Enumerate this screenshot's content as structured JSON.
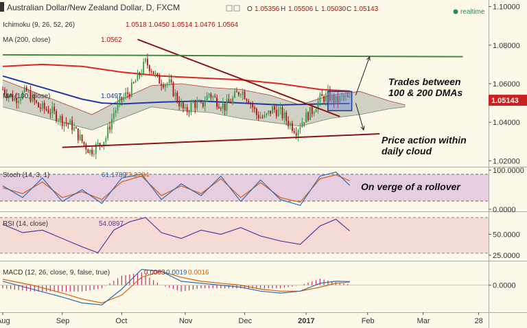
{
  "header": {
    "title": "Australian Dollar/New Zealand Dollar, D, FXCM",
    "o_label": "O",
    "o": "1.05356",
    "h_label": "H",
    "h": "1.05506",
    "l_label": "L",
    "l": "1.05030",
    "c_label": "C",
    "c": "1.05143",
    "realtime": "realtime"
  },
  "legend": {
    "ichimoku": {
      "label": "Ichimoku (9, 26, 52, 26)",
      "values": "1.0518  1.0450  1.0514  1.0476  1.0564"
    },
    "ma200": {
      "label": "MA (200, close)",
      "value": "1.0562"
    },
    "ma100": {
      "label": "MA (100, close)",
      "value": "1.0497"
    },
    "stoch": {
      "label": "Stoch (14, 3, 1)",
      "k": "61.1789",
      "d": "73.2284"
    },
    "rsi": {
      "label": "RSI (14, close)",
      "value": "54.0897"
    },
    "macd": {
      "label": "MACD (12, 26, close, 9, false, true)",
      "hist": "0.0003",
      "macd": "0.0019",
      "signal": "0.0016"
    }
  },
  "annotations": {
    "dma_line1": "Trades between",
    "dma_line2": "100 & 200 DMAs",
    "cloud_line1": "Price action within",
    "cloud_line2": "daily cloud",
    "rollover": "On verge of a rollover"
  },
  "price_axis": {
    "ticks": [
      "1.10000",
      "1.08000",
      "1.06000",
      "1.04000",
      "1.02000"
    ],
    "tick_values": [
      1.1,
      1.08,
      1.06,
      1.04,
      1.02
    ],
    "last": "1.05143",
    "last_value": 1.05143
  },
  "indicator_axes": {
    "stoch": {
      "ticks": [
        "100.0000",
        "0.0000"
      ],
      "tick_values": [
        100,
        0
      ]
    },
    "rsi": {
      "ticks": [
        "50.0000",
        "25.0000"
      ],
      "tick_values": [
        50,
        25
      ]
    },
    "macd": {
      "ticks": [
        "0.0000"
      ],
      "tick_values": [
        0
      ]
    }
  },
  "time_axis": {
    "labels": [
      "Aug",
      "Sep",
      "Oct",
      "Nov",
      "Dec",
      "2017",
      "Feb",
      "Mar",
      "28"
    ],
    "day_index": [
      0,
      30,
      60,
      92,
      122,
      153,
      184,
      212,
      240
    ]
  },
  "colors": {
    "bull": "#2e9e44",
    "bear": "#b01010",
    "ma200": "#e02424",
    "ma100": "#1f3aa8",
    "chikou": "#2e8b57",
    "cloud": "#9aa09a",
    "trend": "#8b1414",
    "stoch_k": "#2b6cb0",
    "stoch_d": "#d4600c",
    "rsi": "#6b2fa0",
    "macd": "#2b6cb0",
    "signal": "#d4600c",
    "hist": "#c0306e"
  },
  "chart_data": {
    "type": "candlestick",
    "symbol": "AUDNZD",
    "timeframe": "D",
    "ylim": [
      1.018,
      1.102
    ],
    "x_dates": [
      "Aug",
      "Sep",
      "Oct",
      "Nov",
      "Dec",
      "2017",
      "Feb",
      "Mar",
      "28"
    ],
    "close_path": [
      [
        0,
        1.057
      ],
      [
        6,
        1.052
      ],
      [
        12,
        1.056
      ],
      [
        18,
        1.048
      ],
      [
        24,
        1.046
      ],
      [
        30,
        1.041
      ],
      [
        35,
        1.038
      ],
      [
        40,
        1.03
      ],
      [
        44,
        1.025
      ],
      [
        48,
        1.028
      ],
      [
        52,
        1.032
      ],
      [
        56,
        1.045
      ],
      [
        60,
        1.052
      ],
      [
        64,
        1.056
      ],
      [
        68,
        1.063
      ],
      [
        72,
        1.071
      ],
      [
        75,
        1.068
      ],
      [
        78,
        1.062
      ],
      [
        84,
        1.06
      ],
      [
        88,
        1.052
      ],
      [
        92,
        1.045
      ],
      [
        96,
        1.05
      ],
      [
        100,
        1.048
      ],
      [
        104,
        1.055
      ],
      [
        108,
        1.051
      ],
      [
        112,
        1.048
      ],
      [
        116,
        1.052
      ],
      [
        120,
        1.057
      ],
      [
        124,
        1.052
      ],
      [
        128,
        1.044
      ],
      [
        132,
        1.042
      ],
      [
        136,
        1.047
      ],
      [
        140,
        1.045
      ],
      [
        144,
        1.04
      ],
      [
        148,
        1.036
      ],
      [
        152,
        1.042
      ],
      [
        156,
        1.046
      ],
      [
        160,
        1.052
      ],
      [
        164,
        1.054
      ],
      [
        168,
        1.051
      ],
      [
        172,
        1.053
      ],
      [
        175,
        1.0514
      ]
    ],
    "ma200_path": [
      [
        0,
        1.069
      ],
      [
        20,
        1.07
      ],
      [
        40,
        1.069
      ],
      [
        60,
        1.066
      ],
      [
        80,
        1.064
      ],
      [
        100,
        1.063
      ],
      [
        120,
        1.062
      ],
      [
        140,
        1.06
      ],
      [
        160,
        1.057
      ],
      [
        175,
        1.0562
      ]
    ],
    "ma100_path": [
      [
        0,
        1.064
      ],
      [
        10,
        1.061
      ],
      [
        20,
        1.058
      ],
      [
        30,
        1.055
      ],
      [
        40,
        1.052
      ],
      [
        50,
        1.05
      ],
      [
        60,
        1.0495
      ],
      [
        80,
        1.0505
      ],
      [
        100,
        1.051
      ],
      [
        120,
        1.05
      ],
      [
        140,
        1.049
      ],
      [
        160,
        1.0495
      ],
      [
        175,
        1.0497
      ]
    ],
    "cloud_upper": [
      [
        0,
        1.062
      ],
      [
        15,
        1.056
      ],
      [
        30,
        1.05
      ],
      [
        45,
        1.044
      ],
      [
        60,
        1.052
      ],
      [
        75,
        1.059
      ],
      [
        90,
        1.06
      ],
      [
        105,
        1.058
      ],
      [
        120,
        1.057
      ],
      [
        135,
        1.054
      ],
      [
        150,
        1.049
      ],
      [
        165,
        1.054
      ],
      [
        180,
        1.056
      ],
      [
        195,
        1.051
      ],
      [
        203,
        1.049
      ]
    ],
    "cloud_lower": [
      [
        0,
        1.048
      ],
      [
        15,
        1.044
      ],
      [
        30,
        1.04
      ],
      [
        45,
        1.036
      ],
      [
        60,
        1.042
      ],
      [
        75,
        1.048
      ],
      [
        90,
        1.046
      ],
      [
        105,
        1.045
      ],
      [
        120,
        1.042
      ],
      [
        135,
        1.04
      ],
      [
        150,
        1.038
      ],
      [
        165,
        1.042
      ],
      [
        180,
        1.044
      ],
      [
        195,
        1.047
      ],
      [
        203,
        1.048
      ]
    ],
    "trendlines": [
      {
        "name": "support",
        "from": [
          30,
          1.027
        ],
        "to": [
          190,
          1.034
        ]
      },
      {
        "name": "resistance",
        "from": [
          68,
          1.083
        ],
        "to": [
          170,
          1.043
        ]
      },
      {
        "name": "horizontal",
        "from": [
          0,
          1.075
        ],
        "to": [
          232,
          1.074
        ]
      }
    ],
    "arrows": [
      {
        "from": [
          178,
          1.054
        ],
        "to": [
          185,
          1.074
        ]
      },
      {
        "from": [
          178,
          1.05
        ],
        "to": [
          182,
          1.036
        ]
      }
    ],
    "consolidation_box": {
      "x_from": [
        164,
        176
      ],
      "y_from": [
        1.046,
        1.056
      ]
    },
    "stoch_k": [
      [
        0,
        60
      ],
      [
        10,
        30
      ],
      [
        20,
        80
      ],
      [
        30,
        20
      ],
      [
        40,
        50
      ],
      [
        50,
        15
      ],
      [
        60,
        80
      ],
      [
        70,
        90
      ],
      [
        80,
        25
      ],
      [
        90,
        65
      ],
      [
        100,
        35
      ],
      [
        110,
        85
      ],
      [
        120,
        20
      ],
      [
        130,
        75
      ],
      [
        140,
        25
      ],
      [
        150,
        10
      ],
      [
        160,
        85
      ],
      [
        168,
        95
      ],
      [
        175,
        61
      ]
    ],
    "stoch_d": [
      [
        0,
        55
      ],
      [
        10,
        40
      ],
      [
        20,
        70
      ],
      [
        30,
        30
      ],
      [
        40,
        45
      ],
      [
        50,
        25
      ],
      [
        60,
        70
      ],
      [
        70,
        85
      ],
      [
        80,
        35
      ],
      [
        90,
        60
      ],
      [
        100,
        40
      ],
      [
        110,
        78
      ],
      [
        120,
        30
      ],
      [
        130,
        68
      ],
      [
        140,
        30
      ],
      [
        150,
        18
      ],
      [
        160,
        78
      ],
      [
        168,
        88
      ],
      [
        175,
        73
      ]
    ],
    "stoch_ylim": [
      0,
      100
    ],
    "rsi": [
      [
        0,
        62
      ],
      [
        10,
        52
      ],
      [
        20,
        55
      ],
      [
        30,
        45
      ],
      [
        40,
        35
      ],
      [
        48,
        28
      ],
      [
        56,
        55
      ],
      [
        64,
        65
      ],
      [
        72,
        70
      ],
      [
        80,
        52
      ],
      [
        90,
        45
      ],
      [
        100,
        55
      ],
      [
        110,
        50
      ],
      [
        120,
        58
      ],
      [
        130,
        48
      ],
      [
        140,
        42
      ],
      [
        150,
        38
      ],
      [
        160,
        60
      ],
      [
        168,
        68
      ],
      [
        175,
        54
      ]
    ],
    "rsi_ylim": [
      20,
      75
    ],
    "macd": [
      [
        0,
        0.002
      ],
      [
        15,
        -0.002
      ],
      [
        30,
        -0.006
      ],
      [
        40,
        -0.009
      ],
      [
        50,
        -0.01
      ],
      [
        60,
        -0.002
      ],
      [
        70,
        0.008
      ],
      [
        80,
        0.007
      ],
      [
        90,
        0.002
      ],
      [
        100,
        0.001
      ],
      [
        110,
        0.0
      ],
      [
        120,
        -0.001
      ],
      [
        130,
        -0.003
      ],
      [
        140,
        -0.004
      ],
      [
        150,
        -0.003
      ],
      [
        160,
        0.001
      ],
      [
        168,
        0.002
      ],
      [
        175,
        0.0019
      ]
    ],
    "signal": [
      [
        0,
        0.003
      ],
      [
        15,
        0.0
      ],
      [
        30,
        -0.004
      ],
      [
        40,
        -0.007
      ],
      [
        50,
        -0.009
      ],
      [
        60,
        -0.005
      ],
      [
        70,
        0.004
      ],
      [
        80,
        0.007
      ],
      [
        90,
        0.004
      ],
      [
        100,
        0.002
      ],
      [
        110,
        0.001
      ],
      [
        120,
        0.0
      ],
      [
        130,
        -0.002
      ],
      [
        140,
        -0.003
      ],
      [
        150,
        -0.003
      ],
      [
        160,
        -0.001
      ],
      [
        168,
        0.001
      ],
      [
        175,
        0.0016
      ]
    ],
    "macd_ylim": [
      -0.013,
      0.011
    ]
  }
}
